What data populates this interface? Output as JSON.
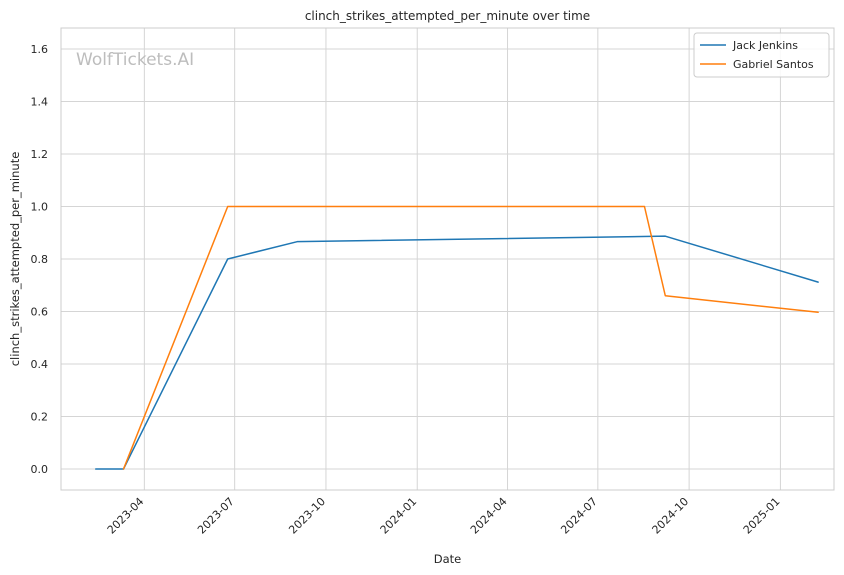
{
  "chart_data": {
    "type": "line",
    "title": "clinch_strikes_attempted_per_minute over time",
    "xlabel": "Date",
    "ylabel": "clinch_strikes_attempted_per_minute",
    "watermark": "WolfTickets.AI",
    "x_type": "date",
    "xlim": [
      "2023-01-07",
      "2025-02-24"
    ],
    "ylim": [
      -0.08,
      1.68
    ],
    "x_ticks": [
      {
        "date": "2023-04-01",
        "label": "2023-04"
      },
      {
        "date": "2023-07-01",
        "label": "2023-07"
      },
      {
        "date": "2023-10-01",
        "label": "2023-10"
      },
      {
        "date": "2024-01-01",
        "label": "2024-01"
      },
      {
        "date": "2024-04-01",
        "label": "2024-04"
      },
      {
        "date": "2024-07-01",
        "label": "2024-07"
      },
      {
        "date": "2024-10-01",
        "label": "2024-10"
      },
      {
        "date": "2025-01-01",
        "label": "2025-01"
      }
    ],
    "y_ticks": [
      {
        "value": 0.0,
        "label": "0.0"
      },
      {
        "value": 0.2,
        "label": "0.2"
      },
      {
        "value": 0.4,
        "label": "0.4"
      },
      {
        "value": 0.6,
        "label": "0.6"
      },
      {
        "value": 0.8,
        "label": "0.8"
      },
      {
        "value": 1.0,
        "label": "1.0"
      },
      {
        "value": 1.2,
        "label": "1.2"
      },
      {
        "value": 1.4,
        "label": "1.4"
      },
      {
        "value": 1.6,
        "label": "1.6"
      }
    ],
    "grid": true,
    "legend_position": "top-right",
    "series": [
      {
        "name": "Jack Jenkins",
        "color": "#1f77b4",
        "points": [
          {
            "x": "2023-02-11",
            "y": 0.0
          },
          {
            "x": "2023-03-11",
            "y": 0.0
          },
          {
            "x": "2023-06-24",
            "y": 0.8
          },
          {
            "x": "2023-09-02",
            "y": 0.866
          },
          {
            "x": "2024-09-07",
            "y": 0.887
          },
          {
            "x": "2025-02-08",
            "y": 0.712
          }
        ]
      },
      {
        "name": "Gabriel Santos",
        "color": "#ff7f0e",
        "points": [
          {
            "x": "2023-03-11",
            "y": 0.0
          },
          {
            "x": "2023-06-24",
            "y": 1.0
          },
          {
            "x": "2024-08-17",
            "y": 1.0
          },
          {
            "x": "2024-09-07",
            "y": 0.66
          },
          {
            "x": "2025-02-08",
            "y": 0.597
          }
        ]
      }
    ]
  }
}
